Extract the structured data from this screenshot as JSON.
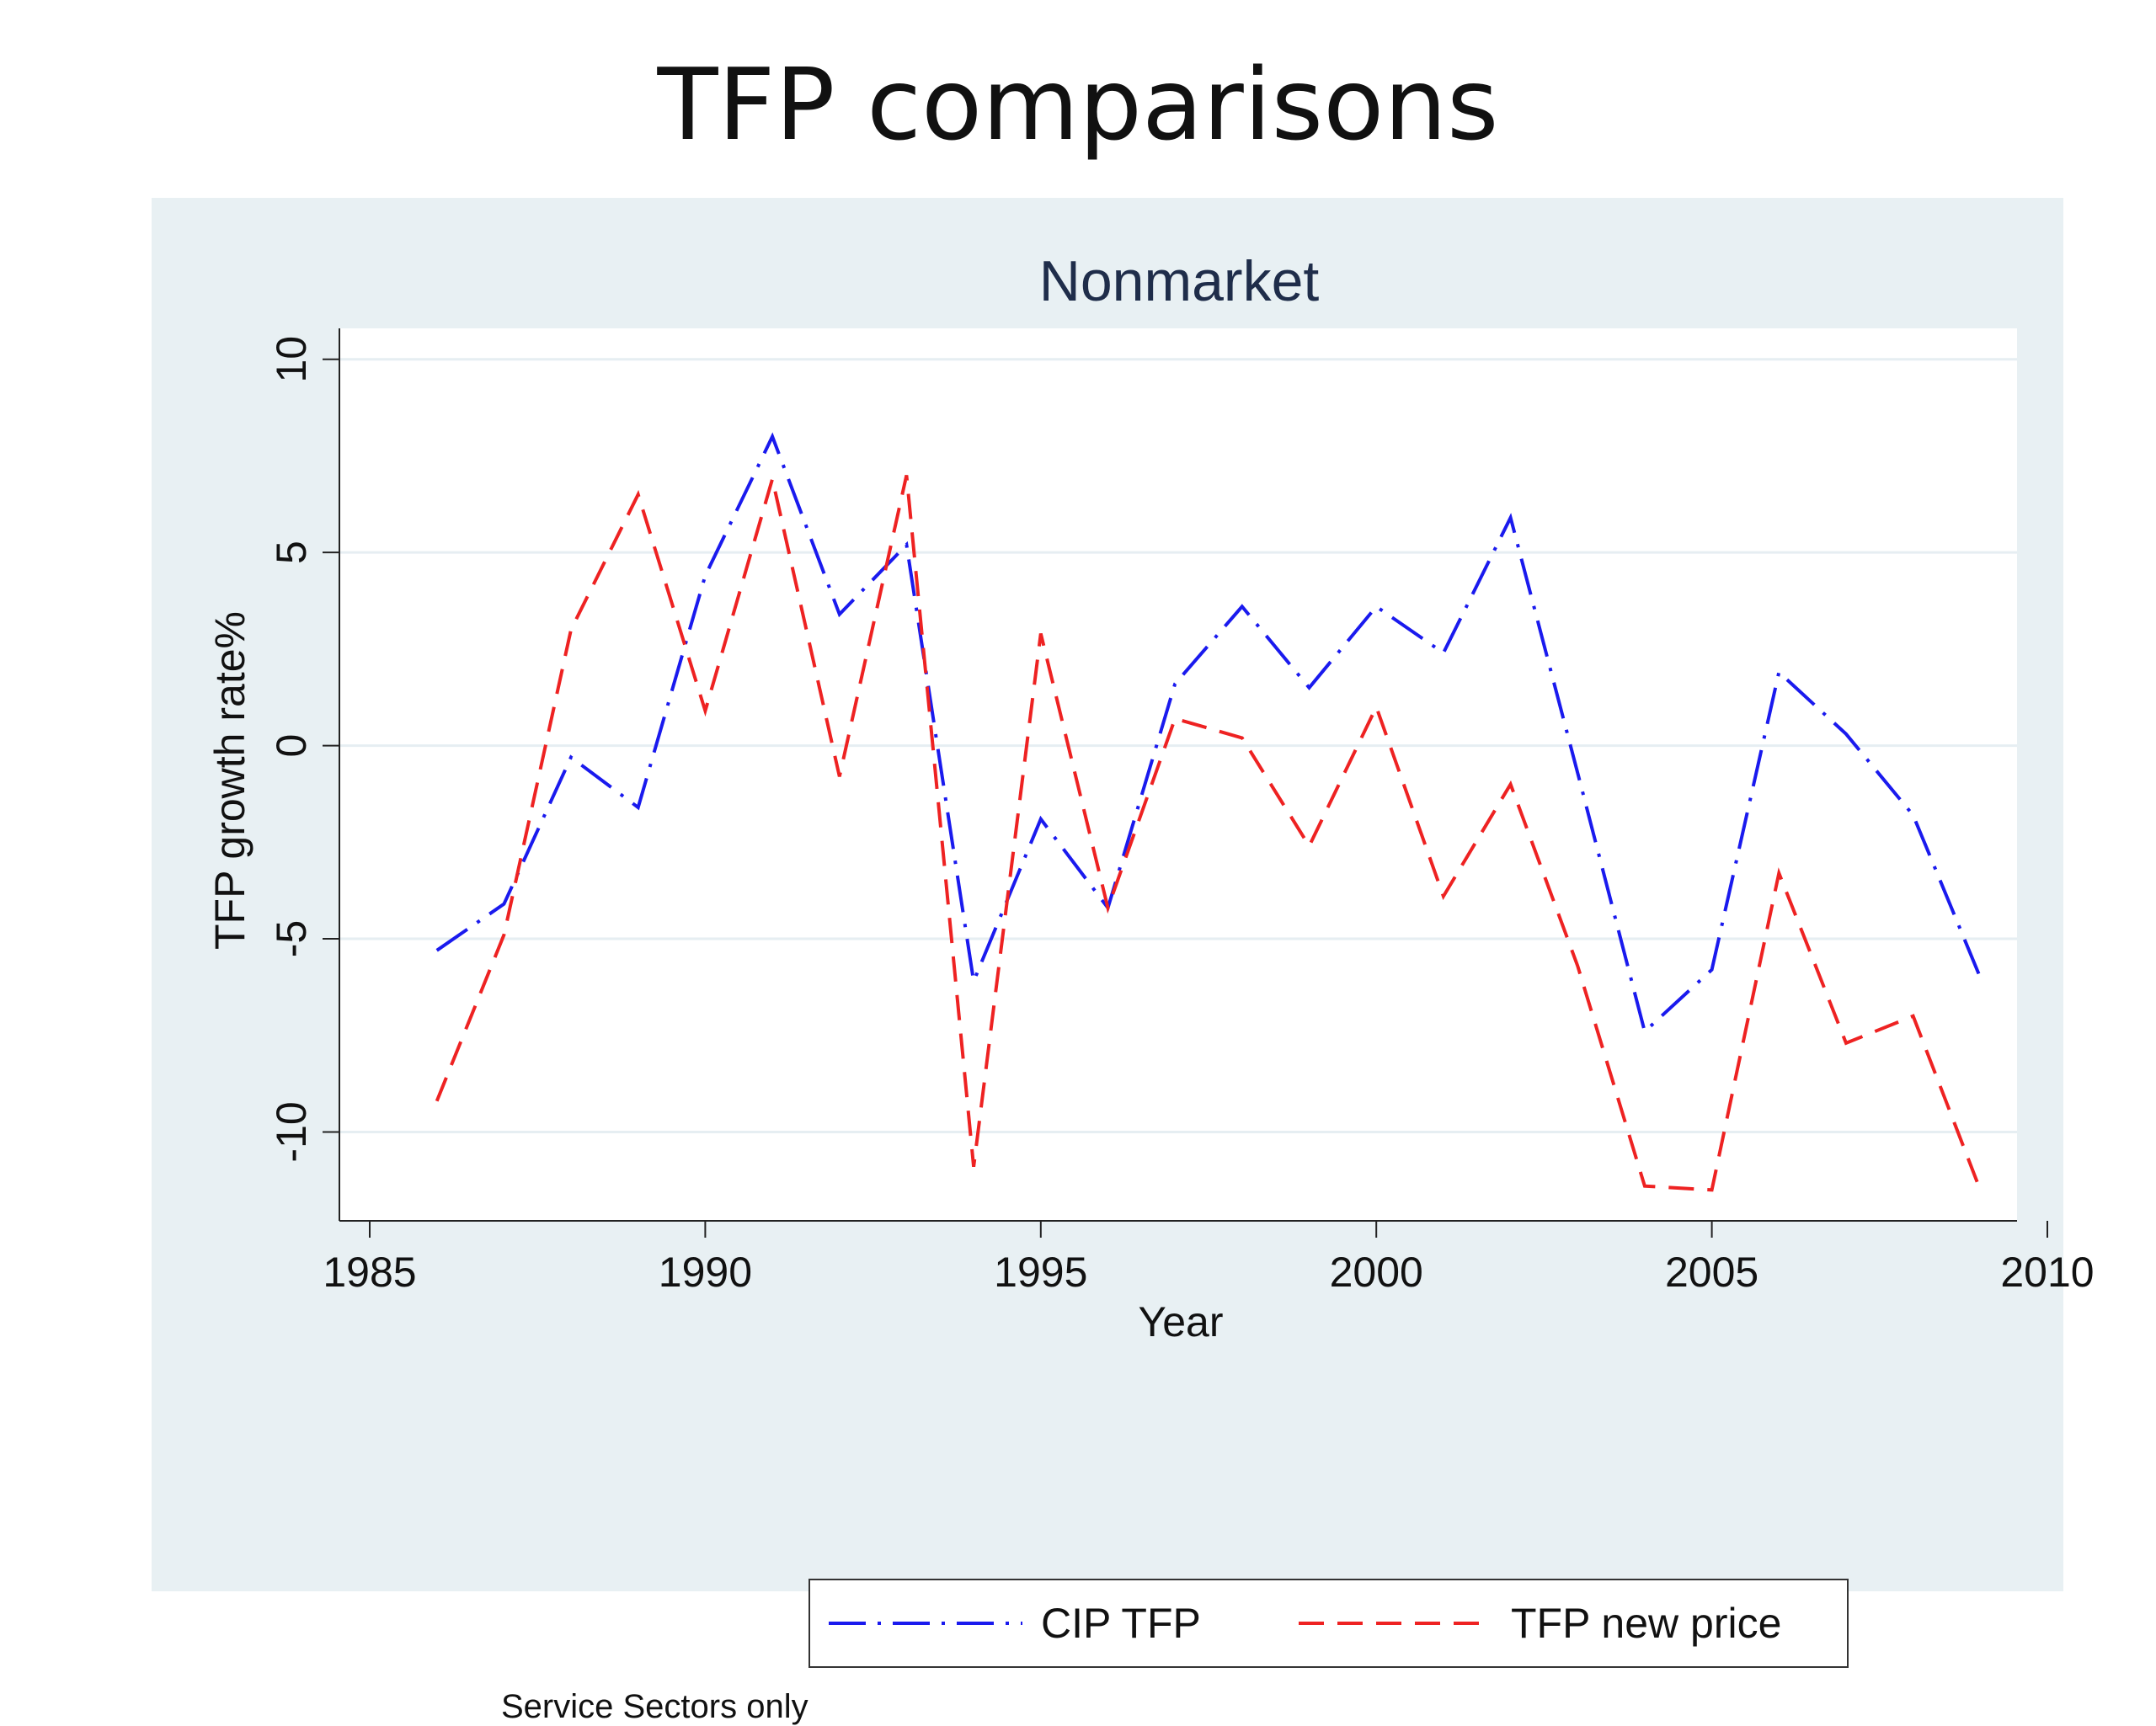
{
  "slide": {
    "title": "TFP comparisons"
  },
  "note": "Service Sectors only",
  "colors": {
    "panel_bg": "#e8f0f3",
    "plot_bg": "#ffffff",
    "cip": "#1a1aee",
    "new_price": "#ee2222",
    "title": "#1f2d4a"
  },
  "chart_data": {
    "type": "line",
    "title": "Nonmarket",
    "xlabel": "Year",
    "ylabel": "TFP growth rate%",
    "xlim": [
      1985,
      2010
    ],
    "ylim": [
      -12.3,
      10.8
    ],
    "xticks": [
      1985,
      1990,
      1995,
      2000,
      2005,
      2010
    ],
    "yticks": [
      -10,
      -5,
      0,
      5,
      10
    ],
    "grid": true,
    "legend_position": "bottom",
    "x": [
      1986,
      1987,
      1988,
      1989,
      1990,
      1991,
      1992,
      1993,
      1994,
      1995,
      1996,
      1997,
      1998,
      1999,
      2000,
      2001,
      2002,
      2003,
      2004,
      2005,
      2006,
      2007,
      2008,
      2009
    ],
    "series": [
      {
        "name": "CIP TFP",
        "style": "dash-dot",
        "color": "#1a1aee",
        "values": [
          -5.3,
          -4.1,
          -0.3,
          -1.6,
          4.4,
          8.0,
          3.4,
          5.2,
          -6.1,
          -1.9,
          -4.2,
          1.6,
          3.6,
          1.5,
          3.6,
          2.4,
          5.9,
          -0.7,
          -7.4,
          -5.8,
          1.9,
          0.3,
          -1.8,
          -6.0
        ]
      },
      {
        "name": "TFP new price",
        "style": "dashed",
        "color": "#ee2222",
        "values": [
          -9.2,
          -4.9,
          3.0,
          6.5,
          0.9,
          6.9,
          -0.8,
          7.0,
          -10.9,
          2.9,
          -4.2,
          0.7,
          0.2,
          -2.6,
          1.0,
          -3.9,
          -1.0,
          -5.7,
          -11.4,
          -11.5,
          -3.3,
          -7.7,
          -7.0,
          -11.5
        ]
      }
    ]
  }
}
